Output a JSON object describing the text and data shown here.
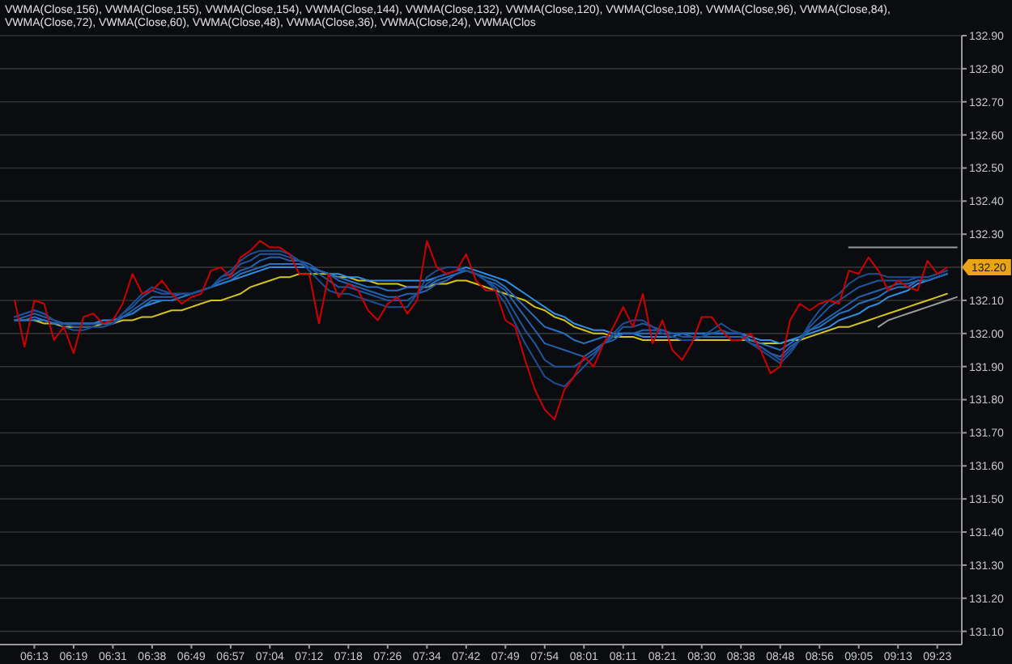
{
  "chart_data": {
    "type": "line",
    "title": "VWMA(Close,156), VWMA(Close,155), VWMA(Close,154), VWMA(Close,144), VWMA(Close,132), VWMA(Close,120), VWMA(Close,108), VWMA(Close,96), VWMA(Close,84), VWMA(Close,72), VWMA(Close,60), VWMA(Close,48), VWMA(Close,36), VWMA(Close,24), VWMA(Clos",
    "categories": [
      null,
      null,
      null,
      "06:13",
      null,
      null,
      null,
      "06:19",
      null,
      null,
      null,
      "06:31",
      null,
      null,
      null,
      "06:38",
      null,
      null,
      null,
      "06:49",
      null,
      null,
      null,
      "06:57",
      null,
      null,
      null,
      "07:04",
      null,
      null,
      null,
      "07:12",
      null,
      null,
      null,
      "07:18",
      null,
      null,
      null,
      "07:26",
      null,
      null,
      null,
      "07:34",
      null,
      null,
      null,
      "07:42",
      null,
      null,
      null,
      "07:49",
      null,
      null,
      null,
      "07:54",
      null,
      null,
      null,
      "08:01",
      null,
      null,
      null,
      "08:11",
      null,
      null,
      null,
      "08:21",
      null,
      null,
      null,
      "08:30",
      null,
      null,
      null,
      "08:38",
      null,
      null,
      null,
      "08:48",
      null,
      null,
      null,
      "08:56",
      null,
      null,
      null,
      "09:05",
      null,
      null,
      null,
      "09:13",
      null,
      null,
      null,
      "09:23",
      null,
      null
    ],
    "ylim": [
      131.06,
      132.9
    ],
    "yticks": [
      {
        "value": 132.9,
        "label": "132.90"
      },
      {
        "value": 132.8,
        "label": "132.80"
      },
      {
        "value": 132.7,
        "label": "132.70"
      },
      {
        "value": 132.6,
        "label": "132.60"
      },
      {
        "value": 132.5,
        "label": "132.50"
      },
      {
        "value": 132.4,
        "label": "132.40"
      },
      {
        "value": 132.3,
        "label": "132.30"
      },
      {
        "value": 132.2,
        "label": null
      },
      {
        "value": 132.1,
        "label": "132.10"
      },
      {
        "value": 132.0,
        "label": "132.00"
      },
      {
        "value": 131.9,
        "label": "131.90"
      },
      {
        "value": 131.8,
        "label": "131.80"
      },
      {
        "value": 131.7,
        "label": "131.70"
      },
      {
        "value": 131.6,
        "label": "131.60"
      },
      {
        "value": 131.5,
        "label": "131.50"
      },
      {
        "value": 131.4,
        "label": "131.40"
      },
      {
        "value": 131.3,
        "label": "131.30"
      },
      {
        "value": 131.2,
        "label": "131.20"
      },
      {
        "value": 131.1,
        "label": "131.10"
      }
    ],
    "grid": "y",
    "annotations": [
      {
        "text": "132.20",
        "y": 132.2
      }
    ],
    "series": [
      {
        "color": "#d4c41c",
        "values": [
          null,
          null,
          null,
          132.04,
          132.03,
          132.03,
          132.02,
          132.02,
          132.02,
          132.02,
          132.03,
          132.03,
          132.04,
          132.04,
          132.05,
          132.05,
          132.06,
          132.07,
          132.07,
          132.08,
          132.09,
          132.1,
          132.1,
          132.11,
          132.12,
          132.14,
          132.15,
          132.16,
          132.17,
          132.17,
          132.18,
          132.18,
          132.18,
          132.18,
          132.17,
          132.17,
          132.16,
          132.16,
          132.15,
          132.15,
          132.15,
          132.14,
          132.14,
          132.14,
          132.15,
          132.15,
          132.16,
          132.16,
          132.15,
          132.14,
          132.13,
          132.12,
          132.11,
          132.1,
          132.08,
          132.07,
          132.05,
          132.04,
          132.02,
          132.01,
          132.0,
          132.0,
          131.99,
          131.99,
          131.99,
          131.98,
          131.98,
          131.98,
          131.98,
          131.98,
          131.98,
          131.98,
          131.98,
          131.98,
          131.98,
          131.98,
          131.98,
          131.97,
          131.97,
          131.97,
          131.98,
          131.98,
          131.99,
          132.0,
          132.01,
          132.02,
          132.02,
          132.03,
          132.04,
          132.05,
          132.06,
          132.07,
          132.08,
          132.09,
          132.1,
          132.11,
          132.12,
          null
        ]
      },
      {
        "color": "#2f8fe6",
        "values": [
          null,
          132.04,
          132.04,
          132.04,
          132.04,
          132.03,
          132.03,
          132.03,
          132.03,
          132.03,
          132.04,
          132.04,
          132.05,
          132.06,
          132.08,
          132.09,
          132.1,
          132.1,
          132.11,
          132.12,
          132.13,
          132.14,
          132.15,
          132.16,
          132.17,
          132.18,
          132.19,
          132.2,
          132.2,
          132.2,
          132.2,
          132.2,
          132.19,
          132.18,
          132.18,
          132.17,
          132.17,
          132.16,
          132.16,
          132.16,
          132.16,
          132.16,
          132.16,
          132.16,
          132.17,
          132.18,
          132.19,
          132.2,
          132.19,
          132.18,
          132.17,
          132.16,
          132.14,
          132.12,
          132.1,
          132.08,
          132.06,
          132.05,
          132.03,
          132.02,
          132.01,
          132.01,
          132.0,
          132.0,
          132.0,
          131.99,
          131.99,
          131.99,
          131.99,
          132.0,
          132.0,
          132.0,
          132.0,
          132.0,
          132.0,
          132.0,
          131.99,
          131.98,
          131.98,
          131.97,
          131.98,
          131.99,
          132.0,
          132.01,
          132.02,
          132.04,
          132.05,
          132.06,
          132.08,
          132.09,
          132.11,
          132.12,
          132.13,
          132.15,
          132.16,
          132.17,
          132.18,
          null
        ]
      },
      {
        "color": "#2672c4",
        "values": [
          null,
          132.04,
          132.04,
          132.05,
          132.04,
          132.03,
          132.03,
          132.03,
          132.03,
          132.03,
          132.03,
          132.03,
          132.05,
          132.06,
          132.08,
          132.1,
          132.1,
          132.1,
          132.11,
          132.12,
          132.13,
          132.14,
          132.15,
          132.16,
          132.18,
          132.19,
          132.2,
          132.21,
          132.21,
          132.21,
          132.21,
          132.2,
          132.19,
          132.18,
          132.17,
          132.16,
          132.15,
          132.14,
          132.14,
          132.13,
          132.13,
          132.14,
          132.14,
          132.14,
          132.16,
          132.17,
          132.18,
          132.19,
          132.18,
          132.17,
          132.16,
          132.14,
          132.11,
          132.08,
          132.05,
          132.02,
          132.01,
          132.0,
          131.98,
          131.97,
          131.98,
          131.99,
          131.99,
          132.0,
          132.0,
          132.0,
          132.0,
          132.0,
          132.0,
          132.0,
          132.0,
          132.0,
          132.0,
          132.0,
          132.0,
          132.0,
          131.98,
          131.97,
          131.96,
          131.95,
          131.97,
          131.99,
          132.01,
          132.02,
          132.04,
          132.06,
          132.07,
          132.09,
          132.1,
          132.11,
          132.13,
          132.14,
          132.14,
          132.16,
          132.16,
          132.17,
          132.18,
          null
        ]
      },
      {
        "color": "#2462b0",
        "values": [
          null,
          132.04,
          132.05,
          132.06,
          132.05,
          132.04,
          132.03,
          132.03,
          132.03,
          132.03,
          132.03,
          132.03,
          132.05,
          132.07,
          132.09,
          132.11,
          132.11,
          132.11,
          132.12,
          132.12,
          132.13,
          132.14,
          132.16,
          132.17,
          132.19,
          132.2,
          132.22,
          132.23,
          132.23,
          132.22,
          132.22,
          132.21,
          132.19,
          132.18,
          132.16,
          132.15,
          132.14,
          132.13,
          132.12,
          132.11,
          132.11,
          132.12,
          132.12,
          132.13,
          132.15,
          132.16,
          132.18,
          132.19,
          132.18,
          132.16,
          132.15,
          132.13,
          132.09,
          132.05,
          132.01,
          131.97,
          131.96,
          131.95,
          131.94,
          131.93,
          131.95,
          131.97,
          131.98,
          132.0,
          132.0,
          132.01,
          132.01,
          132.01,
          132.0,
          132.0,
          131.99,
          131.99,
          131.99,
          131.99,
          131.99,
          131.99,
          131.97,
          131.96,
          131.94,
          131.93,
          131.96,
          131.98,
          132.01,
          132.03,
          132.05,
          132.07,
          132.09,
          132.11,
          132.12,
          132.13,
          132.14,
          132.15,
          132.15,
          132.16,
          132.16,
          132.17,
          132.18,
          null
        ]
      },
      {
        "color": "#1f56a0",
        "values": [
          null,
          132.05,
          132.06,
          132.07,
          132.06,
          132.04,
          132.03,
          132.02,
          132.02,
          132.02,
          132.02,
          132.03,
          132.06,
          132.08,
          132.11,
          132.13,
          132.12,
          132.12,
          132.12,
          132.12,
          132.13,
          132.14,
          132.17,
          132.18,
          132.21,
          132.22,
          132.24,
          132.24,
          132.24,
          132.23,
          132.22,
          132.2,
          132.18,
          132.16,
          132.14,
          132.14,
          132.13,
          132.12,
          132.11,
          132.1,
          132.1,
          132.1,
          132.12,
          132.15,
          132.17,
          132.18,
          132.19,
          132.19,
          132.18,
          132.16,
          132.14,
          132.11,
          132.06,
          132.01,
          131.97,
          131.92,
          131.9,
          131.9,
          131.9,
          131.92,
          131.94,
          131.97,
          131.99,
          132.02,
          132.02,
          132.03,
          132.02,
          132.01,
          132.0,
          131.99,
          131.99,
          131.99,
          132.0,
          132.01,
          132.0,
          132.0,
          131.97,
          131.96,
          131.94,
          131.92,
          131.95,
          131.98,
          132.02,
          132.05,
          132.08,
          132.1,
          132.12,
          132.14,
          132.15,
          132.16,
          132.16,
          132.16,
          132.16,
          132.17,
          132.17,
          132.18,
          132.19,
          null
        ]
      },
      {
        "color": "#1c4e94",
        "values": [
          null,
          132.05,
          132.06,
          132.07,
          132.06,
          132.04,
          132.02,
          132.01,
          132.01,
          132.02,
          132.02,
          132.03,
          132.06,
          132.09,
          132.12,
          132.14,
          132.13,
          132.12,
          132.12,
          132.12,
          132.13,
          132.14,
          132.17,
          132.19,
          132.22,
          132.24,
          132.25,
          132.25,
          132.25,
          132.24,
          132.22,
          132.19,
          132.16,
          132.13,
          132.12,
          132.12,
          132.11,
          132.1,
          132.09,
          132.08,
          132.08,
          132.08,
          132.12,
          132.17,
          132.19,
          132.2,
          132.2,
          132.19,
          132.18,
          132.16,
          132.13,
          132.09,
          132.03,
          131.97,
          131.92,
          131.87,
          131.85,
          131.84,
          131.87,
          131.9,
          131.93,
          131.97,
          132.0,
          132.03,
          132.04,
          132.04,
          132.02,
          132.0,
          131.99,
          131.98,
          131.98,
          131.99,
          132.01,
          132.03,
          132.01,
          132.0,
          131.97,
          131.95,
          131.93,
          131.91,
          131.94,
          131.98,
          132.03,
          132.07,
          132.1,
          132.12,
          132.15,
          132.17,
          132.18,
          132.18,
          132.17,
          132.17,
          132.17,
          132.17,
          132.17,
          132.18,
          132.19,
          null
        ]
      },
      {
        "color": "#d00000",
        "values": [
          null,
          132.1,
          131.96,
          132.1,
          132.09,
          131.98,
          132.02,
          131.94,
          132.05,
          132.06,
          132.03,
          132.04,
          132.09,
          132.18,
          132.12,
          132.13,
          132.16,
          132.12,
          132.09,
          132.11,
          132.12,
          132.19,
          132.2,
          132.17,
          132.23,
          132.25,
          132.28,
          132.26,
          132.26,
          132.24,
          132.18,
          132.18,
          132.03,
          132.18,
          132.11,
          132.15,
          132.13,
          132.07,
          132.04,
          132.09,
          132.11,
          132.06,
          132.1,
          132.28,
          132.2,
          132.18,
          132.19,
          132.24,
          132.16,
          132.13,
          132.13,
          132.04,
          132.02,
          131.92,
          131.83,
          131.77,
          131.74,
          131.83,
          131.87,
          131.93,
          131.9,
          131.97,
          132.02,
          132.08,
          132.02,
          132.12,
          131.97,
          132.04,
          131.95,
          131.92,
          131.97,
          132.05,
          132.05,
          132.01,
          131.98,
          131.98,
          132.0,
          131.95,
          131.88,
          131.9,
          132.04,
          132.09,
          132.07,
          132.09,
          132.1,
          132.09,
          132.19,
          132.18,
          132.23,
          132.19,
          132.13,
          132.16,
          132.14,
          132.13,
          132.22,
          132.18,
          132.2,
          null
        ]
      },
      {
        "color": "#9a9a9a",
        "values": [
          null,
          null,
          null,
          null,
          null,
          null,
          null,
          null,
          null,
          null,
          null,
          null,
          null,
          null,
          null,
          null,
          null,
          null,
          null,
          null,
          null,
          null,
          null,
          null,
          null,
          null,
          null,
          null,
          null,
          null,
          null,
          null,
          null,
          null,
          null,
          null,
          null,
          null,
          null,
          null,
          null,
          null,
          null,
          null,
          null,
          null,
          null,
          null,
          null,
          null,
          null,
          null,
          null,
          null,
          null,
          null,
          null,
          null,
          null,
          null,
          null,
          null,
          null,
          null,
          null,
          null,
          null,
          null,
          null,
          null,
          null,
          null,
          null,
          null,
          null,
          null,
          null,
          null,
          null,
          null,
          null,
          null,
          null,
          null,
          null,
          null,
          132.26,
          132.26,
          132.26,
          132.26,
          132.26,
          132.26,
          132.26,
          132.26,
          132.26,
          132.26,
          132.26,
          132.26
        ]
      },
      {
        "color": "#9a9a9a",
        "values": [
          null,
          null,
          null,
          null,
          null,
          null,
          null,
          null,
          null,
          null,
          null,
          null,
          null,
          null,
          null,
          null,
          null,
          null,
          null,
          null,
          null,
          null,
          null,
          null,
          null,
          null,
          null,
          null,
          null,
          null,
          null,
          null,
          null,
          null,
          null,
          null,
          null,
          null,
          null,
          null,
          null,
          null,
          null,
          null,
          null,
          null,
          null,
          null,
          null,
          null,
          null,
          null,
          null,
          null,
          null,
          null,
          null,
          null,
          null,
          null,
          null,
          null,
          null,
          null,
          null,
          null,
          null,
          null,
          null,
          null,
          null,
          null,
          null,
          null,
          null,
          null,
          null,
          null,
          null,
          null,
          null,
          null,
          null,
          null,
          null,
          null,
          null,
          null,
          null,
          132.02,
          132.04,
          132.05,
          132.06,
          132.07,
          132.08,
          132.09,
          132.1,
          132.11
        ]
      }
    ]
  }
}
